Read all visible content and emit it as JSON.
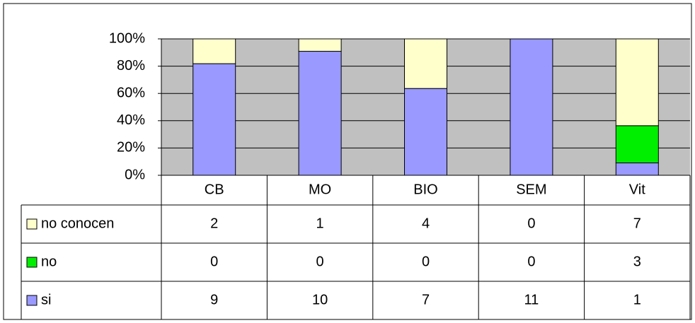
{
  "chart_data": {
    "type": "bar",
    "stacked_percent": true,
    "grid": true,
    "categories": [
      "CB",
      "MO",
      "BIO",
      "SEM",
      "Vit"
    ],
    "series": [
      {
        "name": "no conocen",
        "color": "#ffffcc",
        "values": [
          2,
          1,
          4,
          0,
          7
        ]
      },
      {
        "name": "no",
        "color": "#00ee00",
        "values": [
          0,
          0,
          0,
          0,
          3
        ]
      },
      {
        "name": "si",
        "color": "#9999ff",
        "values": [
          9,
          10,
          7,
          11,
          1
        ]
      }
    ],
    "ylim": [
      0,
      100
    ],
    "yticks": [
      {
        "value": 0,
        "label": "0%"
      },
      {
        "value": 20,
        "label": "20%"
      },
      {
        "value": 40,
        "label": "40%"
      },
      {
        "value": 60,
        "label": "60%"
      },
      {
        "value": 80,
        "label": "80%"
      },
      {
        "value": 100,
        "label": "100%"
      }
    ]
  }
}
